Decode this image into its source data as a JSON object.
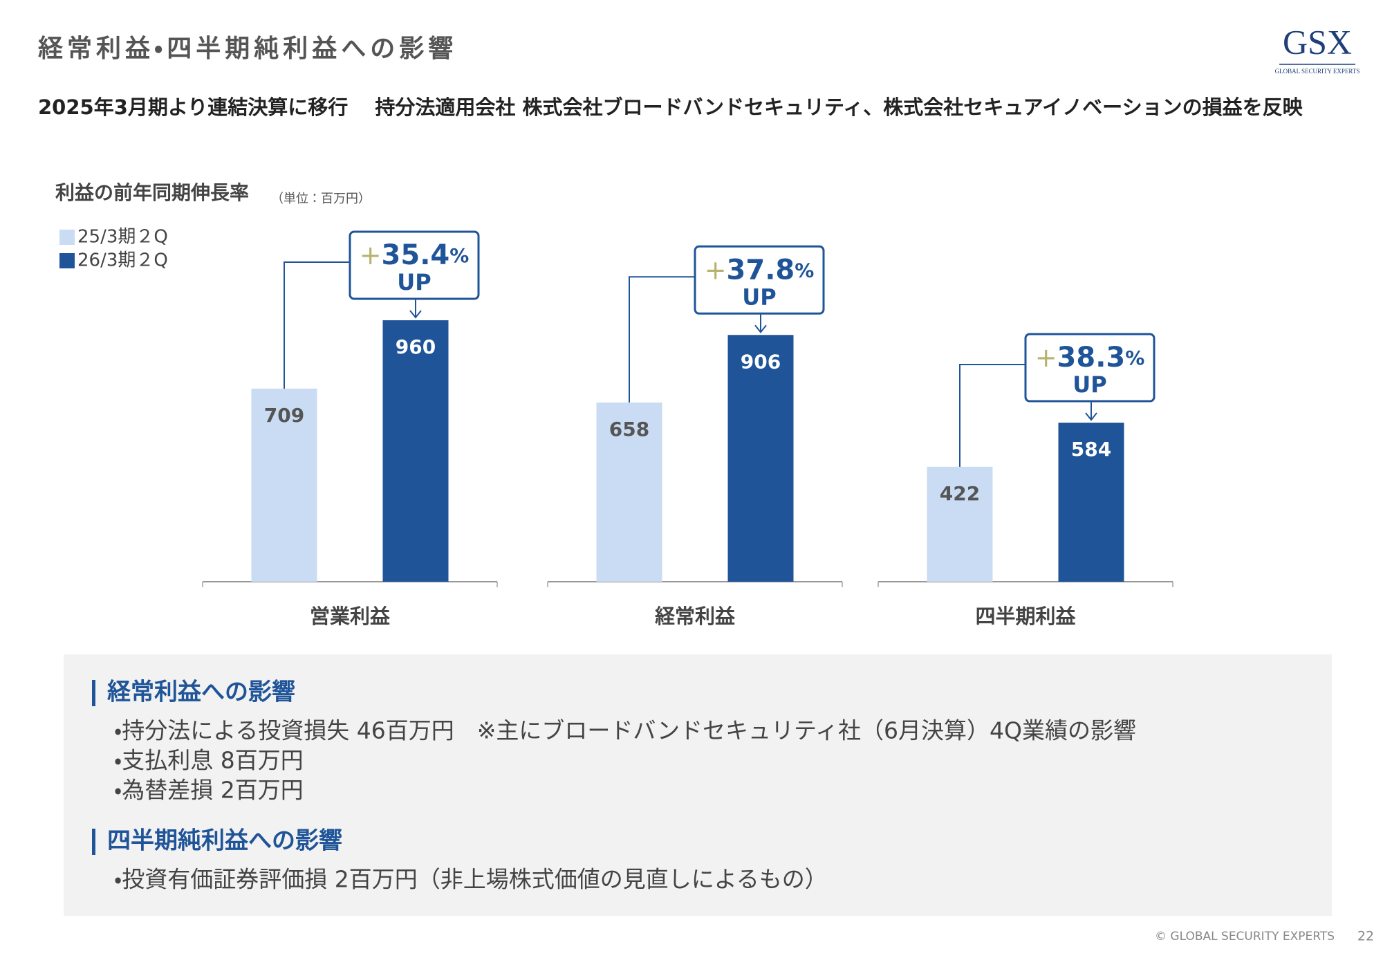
{
  "header": {
    "title": "経常利益・四半期純利益への影響",
    "logo": "GSX",
    "logo_sub": "GLOBAL SECURITY EXPERTS"
  },
  "subtitle": "2025年3月期より連結決算に移行　 持分法適用会社 株式会社ブロードバンドセキュリティ、株式会社セキュアイノベーションの損益を反映",
  "chart_data": {
    "type": "bar",
    "title": "利益の前年同期伸長率",
    "unit_note": "（単位：百万円）",
    "categories": [
      "営業利益",
      "経常利益",
      "四半期利益"
    ],
    "series": [
      {
        "name": "25/3期２Q",
        "color": "#cadcf3",
        "values": [
          709,
          658,
          422
        ]
      },
      {
        "name": "26/3期２Q",
        "color": "#1f5498",
        "values": [
          960,
          906,
          584
        ]
      }
    ],
    "annotations": [
      {
        "sign": "+",
        "value": 35.4,
        "unit": "%",
        "text": "UP"
      },
      {
        "sign": "+",
        "value": 37.8,
        "unit": "%",
        "text": "UP"
      },
      {
        "sign": "+",
        "value": 38.3,
        "unit": "%",
        "text": "UP"
      }
    ]
  },
  "notes": [
    {
      "heading": "経常利益への影響",
      "items": [
        "・持分法による投資損失 46百万円　※主にブロードバンドセキュリティ社（6月決算）4Q業績の影響",
        "・支払利息 8百万円",
        "・為替差損 2百万円"
      ]
    },
    {
      "heading": "四半期純利益への影響",
      "items": [
        "・投資有価証券評価損 2百万円（非上場株式価値の見直しによるもの）"
      ]
    }
  ],
  "footer": {
    "copyright": "© GLOBAL SECURITY EXPERTS",
    "page": 22
  }
}
